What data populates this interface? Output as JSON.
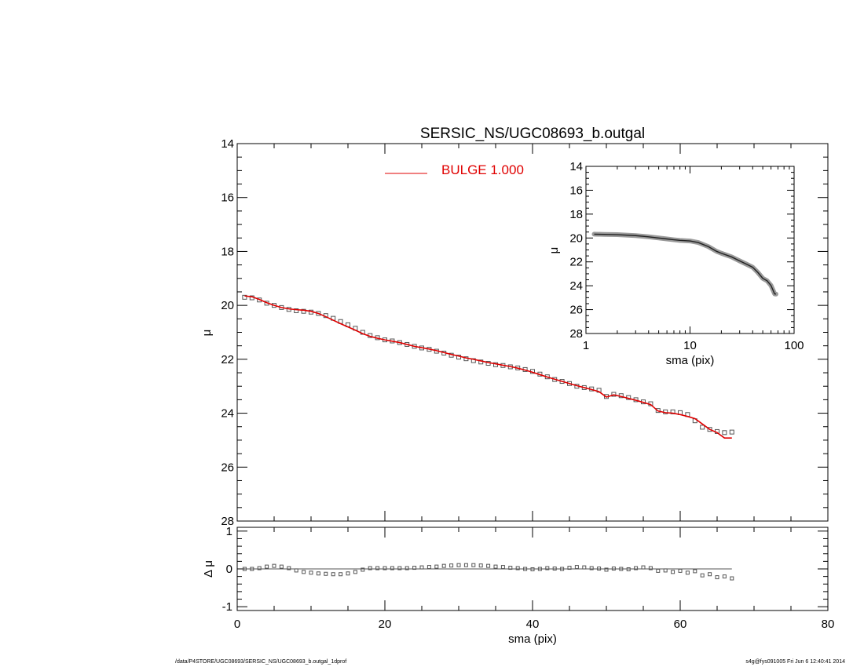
{
  "chart_data": [
    {
      "type": "scatter",
      "name": "main_profile",
      "title": "SERSIC_NS/UGC08693_b.outgal",
      "xlabel": "",
      "ylabel": "μ",
      "xlim": [
        0,
        80
      ],
      "ylim": [
        28,
        14
      ],
      "y_inverted": true,
      "xticks": [
        0,
        20,
        40,
        60,
        80
      ],
      "yticks": [
        14,
        16,
        18,
        20,
        22,
        24,
        26,
        28
      ],
      "legend": {
        "position": "top-center",
        "entries": [
          {
            "label": "BULGE  1.000",
            "color": "#e00000"
          }
        ]
      },
      "series": [
        {
          "name": "",
          "marker": "square",
          "color": "#555555",
          "points": [
            [
              1.0,
              19.7
            ],
            [
              2.0,
              19.72
            ],
            [
              3.0,
              19.8
            ],
            [
              4.0,
              19.92
            ],
            [
              5.0,
              20.0
            ],
            [
              6.0,
              20.08
            ],
            [
              7.0,
              20.15
            ],
            [
              8.0,
              20.2
            ],
            [
              9.0,
              20.22
            ],
            [
              10.0,
              20.25
            ],
            [
              11.0,
              20.3
            ],
            [
              12.0,
              20.38
            ],
            [
              13.0,
              20.48
            ],
            [
              14.0,
              20.6
            ],
            [
              15.0,
              20.72
            ],
            [
              16.0,
              20.85
            ],
            [
              17.0,
              21.0
            ],
            [
              18.0,
              21.12
            ],
            [
              19.0,
              21.2
            ],
            [
              20.0,
              21.28
            ],
            [
              21.0,
              21.32
            ],
            [
              22.0,
              21.38
            ],
            [
              23.0,
              21.45
            ],
            [
              24.0,
              21.52
            ],
            [
              25.0,
              21.58
            ],
            [
              26.0,
              21.63
            ],
            [
              27.0,
              21.7
            ],
            [
              28.0,
              21.77
            ],
            [
              29.0,
              21.85
            ],
            [
              30.0,
              21.92
            ],
            [
              31.0,
              21.98
            ],
            [
              32.0,
              22.05
            ],
            [
              33.0,
              22.1
            ],
            [
              34.0,
              22.15
            ],
            [
              35.0,
              22.2
            ],
            [
              36.0,
              22.23
            ],
            [
              37.0,
              22.28
            ],
            [
              38.0,
              22.32
            ],
            [
              39.0,
              22.38
            ],
            [
              40.0,
              22.45
            ],
            [
              41.0,
              22.55
            ],
            [
              42.0,
              22.65
            ],
            [
              43.0,
              22.75
            ],
            [
              44.0,
              22.82
            ],
            [
              45.0,
              22.9
            ],
            [
              46.0,
              23.0
            ],
            [
              47.0,
              23.05
            ],
            [
              48.0,
              23.1
            ],
            [
              49.0,
              23.15
            ],
            [
              50.0,
              23.38
            ],
            [
              51.0,
              23.3
            ],
            [
              52.0,
              23.35
            ],
            [
              53.0,
              23.42
            ],
            [
              54.0,
              23.5
            ],
            [
              55.0,
              23.58
            ],
            [
              56.0,
              23.65
            ],
            [
              57.0,
              23.9
            ],
            [
              58.0,
              23.95
            ],
            [
              59.0,
              23.95
            ],
            [
              60.0,
              23.98
            ],
            [
              61.0,
              24.05
            ],
            [
              62.0,
              24.28
            ],
            [
              63.0,
              24.52
            ],
            [
              64.0,
              24.6
            ],
            [
              65.0,
              24.68
            ],
            [
              66.0,
              24.72
            ],
            [
              67.0,
              24.7
            ]
          ]
        },
        {
          "name": "BULGE  1.000",
          "type": "line",
          "color": "#e00000",
          "points": [
            [
              1.0,
              19.65
            ],
            [
              2.0,
              19.68
            ],
            [
              3.0,
              19.78
            ],
            [
              4.0,
              19.9
            ],
            [
              5.0,
              20.0
            ],
            [
              6.0,
              20.08
            ],
            [
              7.0,
              20.13
            ],
            [
              8.0,
              20.16
            ],
            [
              9.0,
              20.18
            ],
            [
              10.0,
              20.22
            ],
            [
              11.0,
              20.3
            ],
            [
              12.0,
              20.42
            ],
            [
              13.0,
              20.55
            ],
            [
              14.0,
              20.68
            ],
            [
              15.0,
              20.8
            ],
            [
              16.0,
              20.92
            ],
            [
              17.0,
              21.05
            ],
            [
              18.0,
              21.15
            ],
            [
              19.0,
              21.22
            ],
            [
              20.0,
              21.28
            ],
            [
              21.0,
              21.33
            ],
            [
              22.0,
              21.38
            ],
            [
              23.0,
              21.45
            ],
            [
              24.0,
              21.52
            ],
            [
              25.0,
              21.57
            ],
            [
              26.0,
              21.62
            ],
            [
              27.0,
              21.68
            ],
            [
              28.0,
              21.75
            ],
            [
              29.0,
              21.82
            ],
            [
              30.0,
              21.88
            ],
            [
              31.0,
              21.95
            ],
            [
              32.0,
              22.0
            ],
            [
              33.0,
              22.06
            ],
            [
              34.0,
              22.12
            ],
            [
              35.0,
              22.17
            ],
            [
              36.0,
              22.22
            ],
            [
              37.0,
              22.27
            ],
            [
              38.0,
              22.33
            ],
            [
              39.0,
              22.4
            ],
            [
              40.0,
              22.48
            ],
            [
              41.0,
              22.57
            ],
            [
              42.0,
              22.66
            ],
            [
              43.0,
              22.74
            ],
            [
              44.0,
              22.82
            ],
            [
              45.0,
              22.9
            ],
            [
              46.0,
              22.98
            ],
            [
              47.0,
              23.05
            ],
            [
              48.0,
              23.12
            ],
            [
              49.0,
              23.2
            ],
            [
              50.0,
              23.4
            ],
            [
              51.0,
              23.32
            ],
            [
              52.0,
              23.38
            ],
            [
              53.0,
              23.45
            ],
            [
              54.0,
              23.52
            ],
            [
              55.0,
              23.6
            ],
            [
              56.0,
              23.68
            ],
            [
              57.0,
              23.92
            ],
            [
              58.0,
              23.98
            ],
            [
              59.0,
              24.0
            ],
            [
              60.0,
              24.05
            ],
            [
              61.0,
              24.12
            ],
            [
              62.0,
              24.2
            ],
            [
              63.0,
              24.4
            ],
            [
              64.0,
              24.6
            ],
            [
              65.0,
              24.72
            ],
            [
              66.0,
              24.92
            ],
            [
              67.0,
              24.92
            ]
          ]
        }
      ]
    },
    {
      "type": "line",
      "name": "inset_log_profile",
      "xlabel": "sma (pix)",
      "ylabel": "μ",
      "x_scale": "log",
      "xlim": [
        1,
        100
      ],
      "ylim": [
        28,
        14
      ],
      "y_inverted": true,
      "xticks": [
        1,
        10,
        100
      ],
      "xtick_labels": [
        "1",
        "10",
        "100"
      ],
      "yticks": [
        14,
        16,
        18,
        20,
        22,
        24,
        26,
        28
      ],
      "series": [
        {
          "name": "",
          "color": "#555555",
          "points": [
            [
              1.2,
              19.68
            ],
            [
              1.5,
              19.7
            ],
            [
              2.0,
              19.72
            ],
            [
              3.0,
              19.8
            ],
            [
              4.0,
              19.9
            ],
            [
              5.0,
              20.0
            ],
            [
              6.0,
              20.08
            ],
            [
              7.0,
              20.15
            ],
            [
              8.0,
              20.2
            ],
            [
              10.0,
              20.25
            ],
            [
              12.0,
              20.38
            ],
            [
              15.0,
              20.72
            ],
            [
              18.0,
              21.12
            ],
            [
              20.0,
              21.28
            ],
            [
              25.0,
              21.58
            ],
            [
              30.0,
              21.92
            ],
            [
              35.0,
              22.2
            ],
            [
              40.0,
              22.45
            ],
            [
              45.0,
              22.9
            ],
            [
              50.0,
              23.38
            ],
            [
              55.0,
              23.58
            ],
            [
              60.0,
              23.98
            ],
            [
              65.0,
              24.68
            ],
            [
              67.0,
              24.7
            ]
          ]
        }
      ]
    },
    {
      "type": "scatter",
      "name": "residuals",
      "xlabel": "sma (pix)",
      "ylabel": "Δ μ",
      "xlim": [
        0,
        80
      ],
      "ylim": [
        -1.1,
        1.1
      ],
      "xticks": [
        0,
        20,
        40,
        60,
        80
      ],
      "yticks": [
        -1,
        0,
        1
      ],
      "ytick_labels": [
        "-1",
        "0",
        "1"
      ],
      "series": [
        {
          "name": "",
          "marker": "square",
          "color": "#555555",
          "points": [
            [
              1.0,
              0.0
            ],
            [
              2.0,
              0.0
            ],
            [
              3.0,
              0.02
            ],
            [
              4.0,
              0.06
            ],
            [
              5.0,
              0.08
            ],
            [
              6.0,
              0.06
            ],
            [
              7.0,
              0.02
            ],
            [
              8.0,
              -0.04
            ],
            [
              9.0,
              -0.08
            ],
            [
              10.0,
              -0.1
            ],
            [
              11.0,
              -0.12
            ],
            [
              12.0,
              -0.13
            ],
            [
              13.0,
              -0.14
            ],
            [
              14.0,
              -0.14
            ],
            [
              15.0,
              -0.12
            ],
            [
              16.0,
              -0.08
            ],
            [
              17.0,
              -0.02
            ],
            [
              18.0,
              0.02
            ],
            [
              19.0,
              0.02
            ],
            [
              20.0,
              0.02
            ],
            [
              21.0,
              0.02
            ],
            [
              22.0,
              0.02
            ],
            [
              23.0,
              0.02
            ],
            [
              24.0,
              0.03
            ],
            [
              25.0,
              0.04
            ],
            [
              26.0,
              0.05
            ],
            [
              27.0,
              0.06
            ],
            [
              28.0,
              0.08
            ],
            [
              29.0,
              0.09
            ],
            [
              30.0,
              0.1
            ],
            [
              31.0,
              0.1
            ],
            [
              32.0,
              0.1
            ],
            [
              33.0,
              0.09
            ],
            [
              34.0,
              0.08
            ],
            [
              35.0,
              0.06
            ],
            [
              36.0,
              0.05
            ],
            [
              37.0,
              0.03
            ],
            [
              38.0,
              0.02
            ],
            [
              39.0,
              0.0
            ],
            [
              40.0,
              -0.01
            ],
            [
              41.0,
              0.0
            ],
            [
              42.0,
              0.02
            ],
            [
              43.0,
              0.01
            ],
            [
              44.0,
              0.0
            ],
            [
              45.0,
              0.03
            ],
            [
              46.0,
              0.05
            ],
            [
              47.0,
              0.04
            ],
            [
              48.0,
              0.02
            ],
            [
              49.0,
              0.01
            ],
            [
              50.0,
              -0.02
            ],
            [
              51.0,
              0.01
            ],
            [
              52.0,
              0.0
            ],
            [
              53.0,
              -0.01
            ],
            [
              54.0,
              0.02
            ],
            [
              55.0,
              0.04
            ],
            [
              56.0,
              0.02
            ],
            [
              57.0,
              -0.05
            ],
            [
              58.0,
              -0.04
            ],
            [
              59.0,
              -0.08
            ],
            [
              60.0,
              -0.05
            ],
            [
              61.0,
              -0.1
            ],
            [
              62.0,
              -0.06
            ],
            [
              63.0,
              -0.17
            ],
            [
              64.0,
              -0.14
            ],
            [
              65.0,
              -0.22
            ],
            [
              66.0,
              -0.2
            ],
            [
              67.0,
              -0.25
            ]
          ]
        },
        {
          "name": "",
          "type": "line",
          "color": "#555555",
          "points": [
            [
              1.0,
              0.0
            ],
            [
              67.0,
              0.0
            ]
          ]
        }
      ]
    }
  ],
  "footer": {
    "left": "/data/P4STORE/UGC08693/SERSIC_NS/UGC08693_b.outgal_1dprof",
    "right": "s4g@fys091005  Fri Jun  6 12:40:41 2014"
  }
}
